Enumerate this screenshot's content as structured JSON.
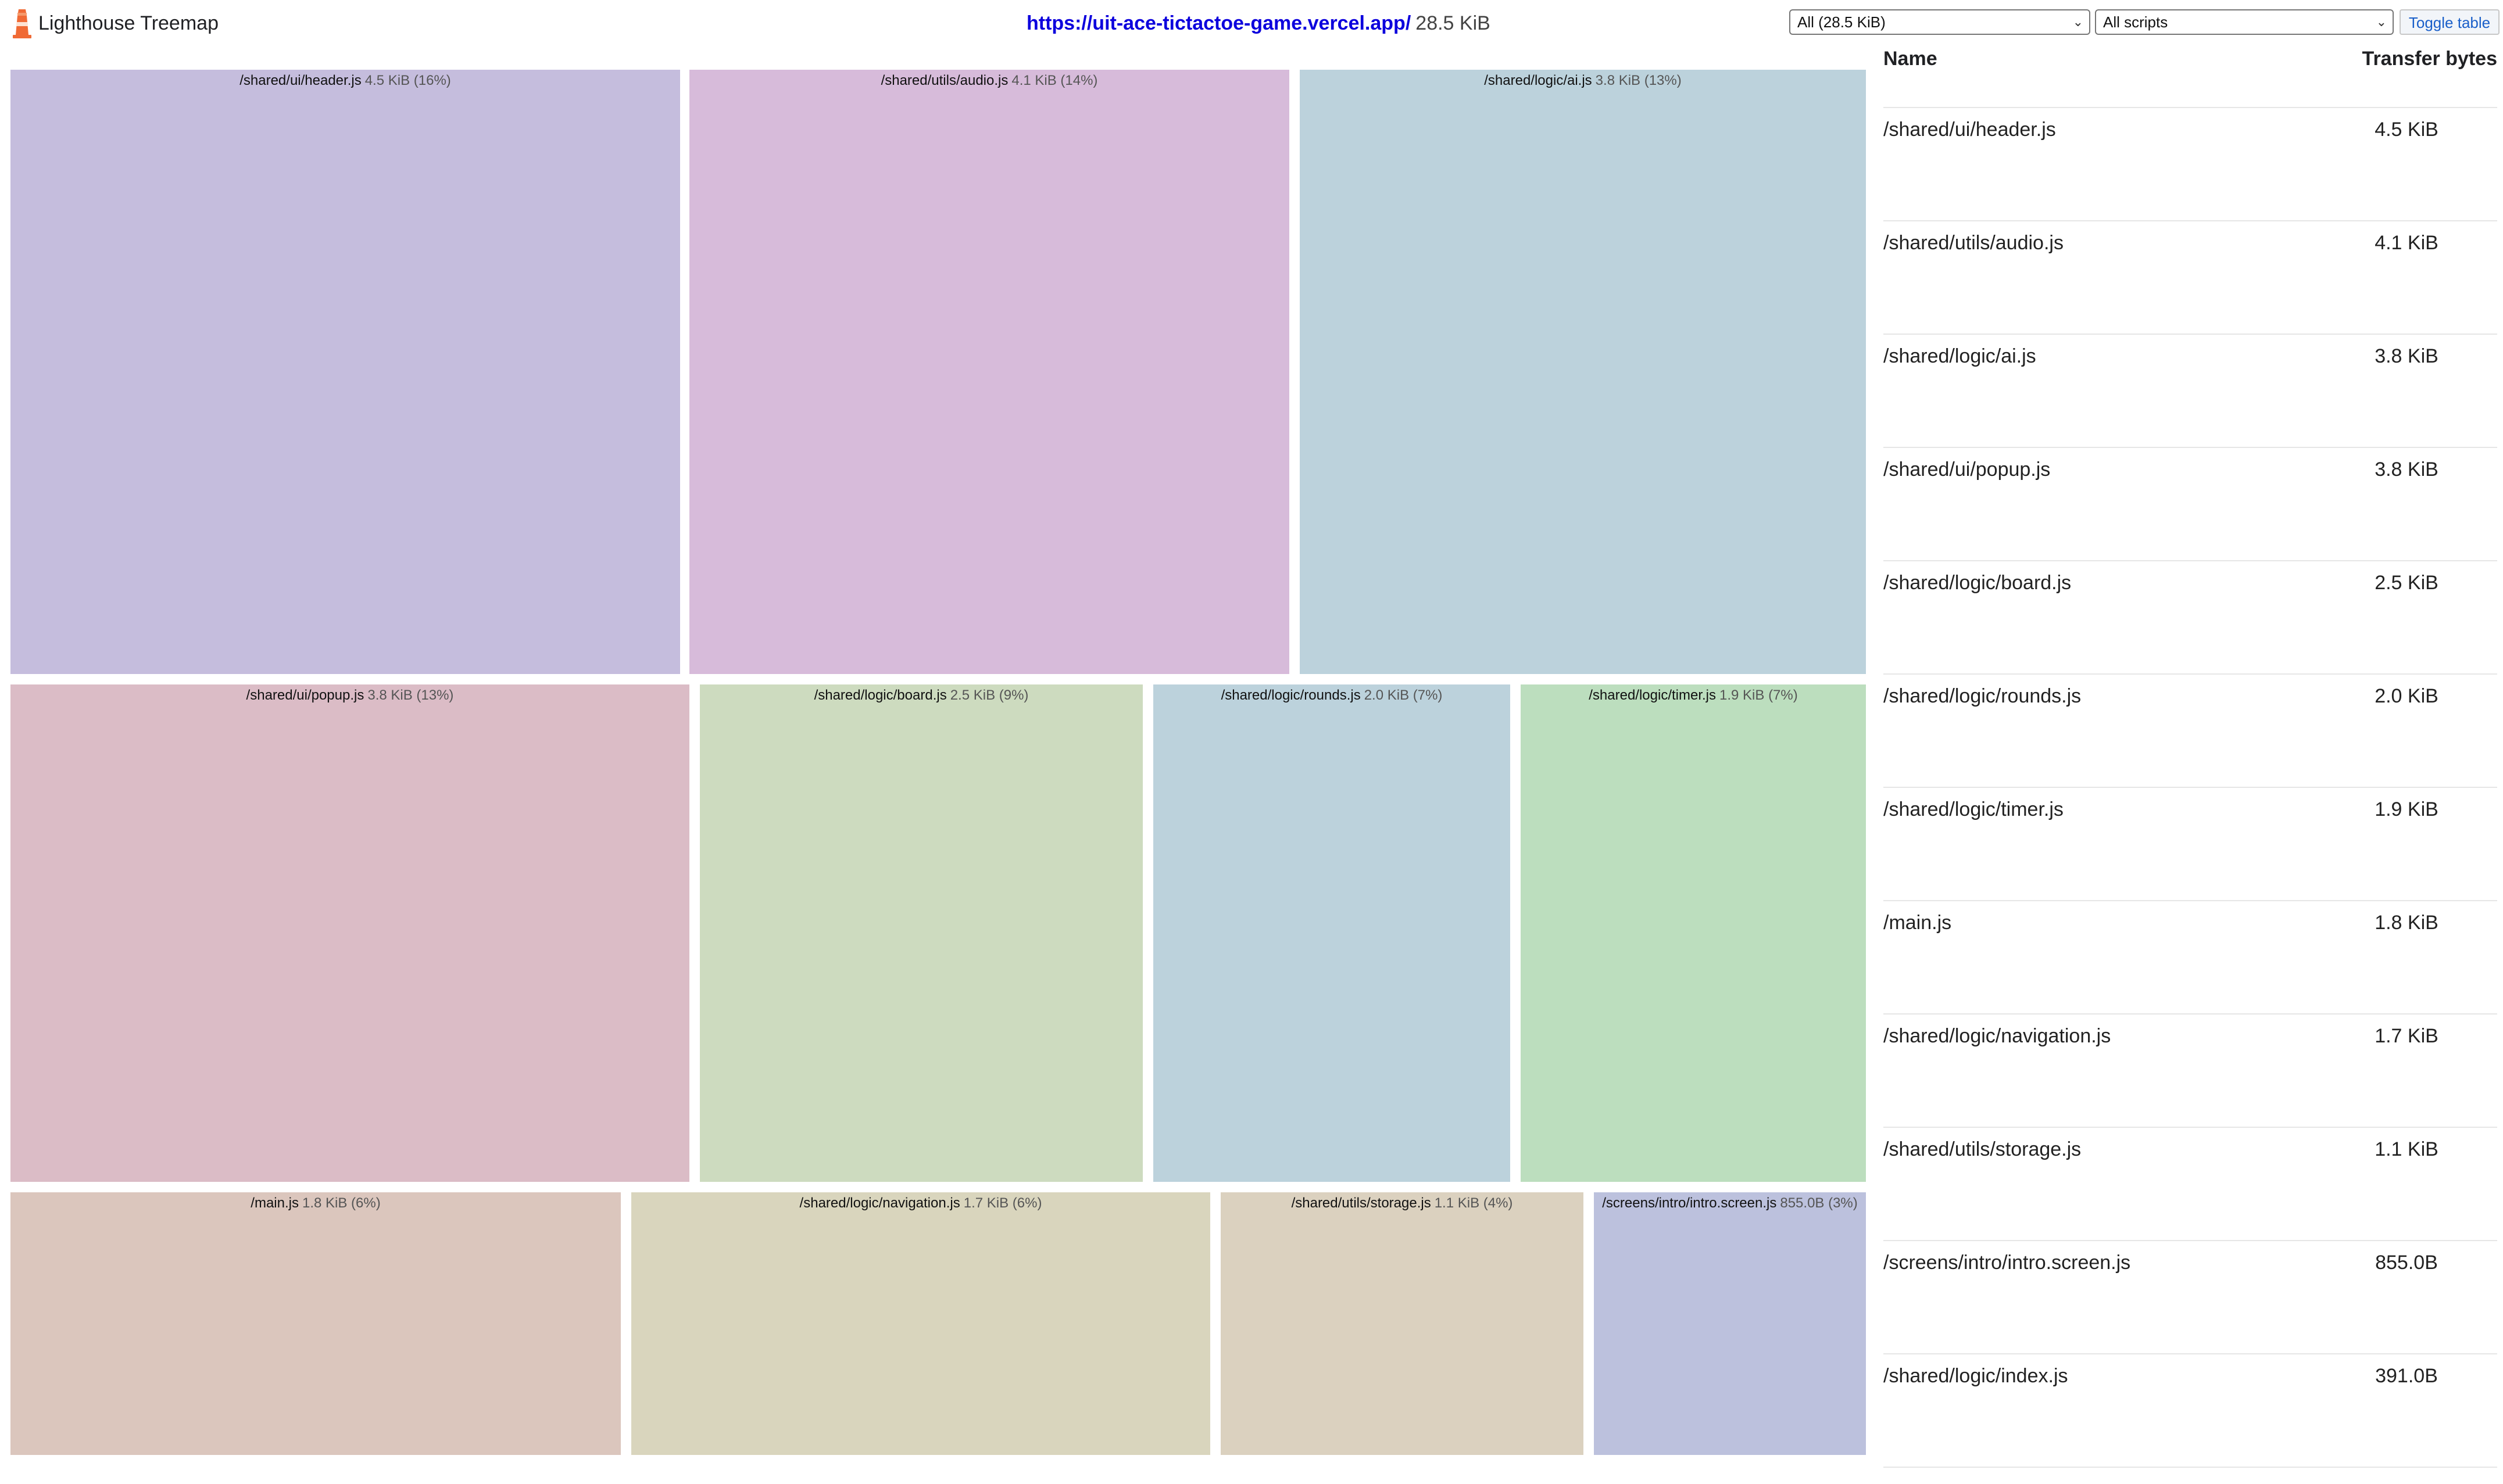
{
  "app": {
    "title": "Lighthouse Treemap",
    "url": "https://uit-ace-tictactoe-game.vercel.app/",
    "total_size": "28.5 KiB"
  },
  "controls": {
    "group_select": "All (28.5 KiB)",
    "script_select": "All scripts",
    "toggle_label": "Toggle table"
  },
  "treemap": {
    "cells": [
      {
        "name": "/shared/ui/header.js",
        "meta": "4.5 KiB (16%)",
        "color": "#c5bddd"
      },
      {
        "name": "/shared/utils/audio.js",
        "meta": "4.1 KiB (14%)",
        "color": "#d7bbda"
      },
      {
        "name": "/shared/logic/ai.js",
        "meta": "3.8 KiB (13%)",
        "color": "#bcd2dc"
      },
      {
        "name": "/shared/ui/popup.js",
        "meta": "3.8 KiB (13%)",
        "color": "#dbbcc6"
      },
      {
        "name": "/shared/logic/board.js",
        "meta": "2.5 KiB (9%)",
        "color": "#cddbbf"
      },
      {
        "name": "/shared/logic/rounds.js",
        "meta": "2.0 KiB (7%)",
        "color": "#bcd2dc"
      },
      {
        "name": "/shared/logic/timer.js",
        "meta": "1.9 KiB (7%)",
        "color": "#bcdebe"
      },
      {
        "name": "/main.js",
        "meta": "1.8 KiB (6%)",
        "color": "#dbc6bd"
      },
      {
        "name": "/shared/logic/navigation.js",
        "meta": "1.7 KiB (6%)",
        "color": "#d9d5bd"
      },
      {
        "name": "/shared/utils/storage.js",
        "meta": "1.1 KiB (4%)",
        "color": "#dbd1bf"
      },
      {
        "name": "/screens/intro/intro.screen.js",
        "meta": "855.0B (3%)",
        "color": "#bcc1dd"
      }
    ]
  },
  "table": {
    "headers": {
      "name": "Name",
      "bytes": "Transfer bytes"
    },
    "rows": [
      {
        "name": "/shared/ui/header.js",
        "bytes": "4.5 KiB"
      },
      {
        "name": "/shared/utils/audio.js",
        "bytes": "4.1 KiB"
      },
      {
        "name": "/shared/logic/ai.js",
        "bytes": "3.8 KiB"
      },
      {
        "name": "/shared/ui/popup.js",
        "bytes": "3.8 KiB"
      },
      {
        "name": "/shared/logic/board.js",
        "bytes": "2.5 KiB"
      },
      {
        "name": "/shared/logic/rounds.js",
        "bytes": "2.0 KiB"
      },
      {
        "name": "/shared/logic/timer.js",
        "bytes": "1.9 KiB"
      },
      {
        "name": "/main.js",
        "bytes": "1.8 KiB"
      },
      {
        "name": "/shared/logic/navigation.js",
        "bytes": "1.7 KiB"
      },
      {
        "name": "/shared/utils/storage.js",
        "bytes": "1.1 KiB"
      },
      {
        "name": "/screens/intro/intro.screen.js",
        "bytes": "855.0B"
      },
      {
        "name": "/shared/logic/index.js",
        "bytes": "391.0B"
      }
    ]
  }
}
